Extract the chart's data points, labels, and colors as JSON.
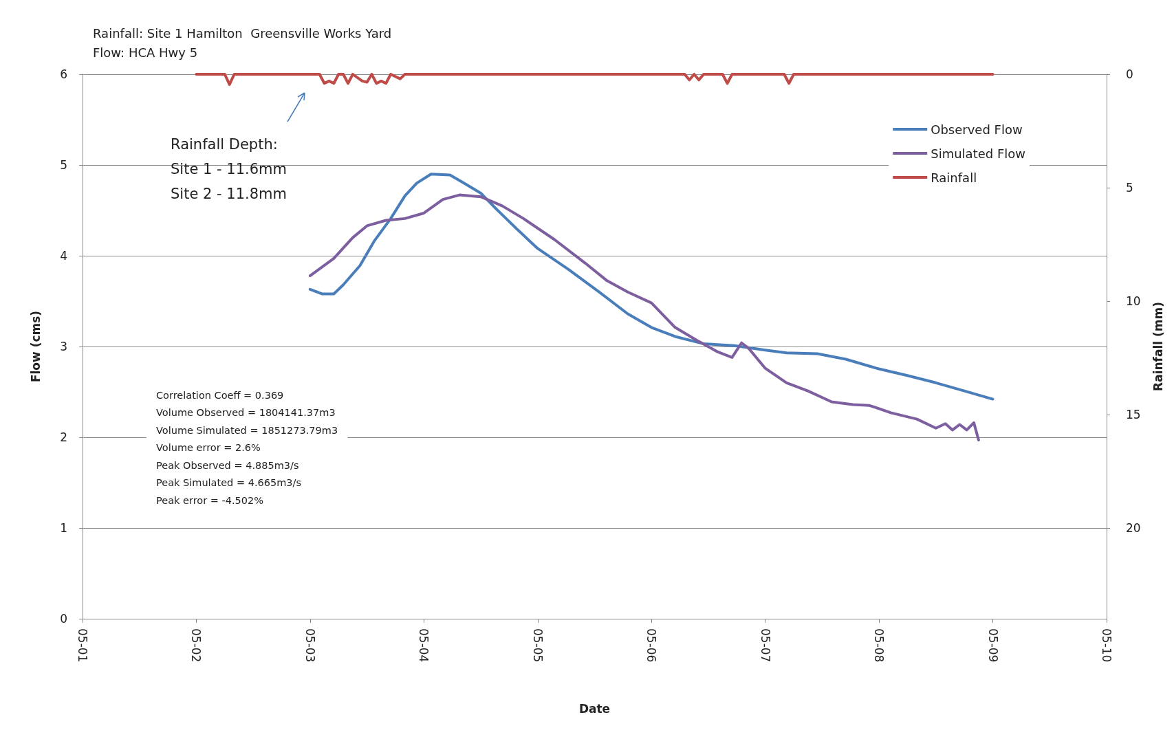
{
  "chart_data": {
    "type": "line",
    "title": "Rainfall: Site 1 Hamilton  Greensville Works Yard",
    "subtitle": "Flow: HCA Hwy 5",
    "xlabel": "Date",
    "ylabel": "Flow (cms)",
    "y2label": "Rainfall (mm)",
    "xlim": [
      "--05-01",
      "--05-10"
    ],
    "xticks": [
      {
        "value": "--05-01",
        "label": "05-01"
      },
      {
        "value": "--05-02",
        "label": "05-02"
      },
      {
        "value": "--05-03",
        "label": "05-03"
      },
      {
        "value": "--05-04",
        "label": "05-04"
      },
      {
        "value": "--05-05",
        "label": "05-05"
      },
      {
        "value": "--05-06",
        "label": "05-06"
      },
      {
        "value": "--05-07",
        "label": "05-07"
      },
      {
        "value": "--05-08",
        "label": "05-08"
      },
      {
        "value": "--05-09",
        "label": "05-09"
      },
      {
        "value": "--05-10",
        "label": "05-10"
      }
    ],
    "ylim": [
      0,
      6
    ],
    "yticks": [
      0,
      1,
      2,
      3,
      4,
      5,
      6
    ],
    "y2lim": [
      24,
      0
    ],
    "y2ticks": [
      0,
      5,
      10,
      15,
      20
    ],
    "grid": "y",
    "legend": "top right",
    "marker": "none",
    "line_style": "solid",
    "series": [
      {
        "name": "Observed Flow",
        "color": "#4a7ebb",
        "x": [
          "--05-03T00:00",
          "--05-03T02:30",
          "--05-03T05:00",
          "--05-03T07:00",
          "--05-03T10:30",
          "--05-03T13:30",
          "--05-03T17:00",
          "--05-03T20:00",
          "--05-03T22:30",
          "--05-04T01:30",
          "--05-04T05:30",
          "--05-04T08:30",
          "--05-04T12:00",
          "--05-04T15:00",
          "--05-04T19:30",
          "--05-05T00:00",
          "--05-05T06:30",
          "--05-05T13:00",
          "--05-05T19:00",
          "--05-06T00:00",
          "--05-06T05:00",
          "--05-06T11:00",
          "--05-06T17:30",
          "--05-07T00:00",
          "--05-07T04:30",
          "--05-07T11:00",
          "--05-07T17:00",
          "--05-07T23:30",
          "--05-08T06:00",
          "--05-08T12:00",
          "--05-08T18:00",
          "--05-09T00:00"
        ],
        "values": [
          3.63,
          3.58,
          3.58,
          3.68,
          3.89,
          4.16,
          4.41,
          4.66,
          4.8,
          4.9,
          4.89,
          4.8,
          4.69,
          4.53,
          4.3,
          4.08,
          3.85,
          3.6,
          3.36,
          3.21,
          3.11,
          3.03,
          3.01,
          2.96,
          2.93,
          2.92,
          2.86,
          2.76,
          2.68,
          2.6,
          2.51,
          2.42
        ]
      },
      {
        "name": "Simulated Flow",
        "color": "#7d5fa0",
        "x": [
          "--05-03T00:00",
          "--05-03T05:00",
          "--05-03T09:00",
          "--05-03T12:00",
          "--05-03T16:00",
          "--05-03T20:00",
          "--05-04T00:00",
          "--05-04T04:00",
          "--05-04T07:30",
          "--05-04T12:00",
          "--05-04T16:30",
          "--05-04T21:00",
          "--05-05T03:30",
          "--05-05T10:00",
          "--05-05T14:30",
          "--05-05T19:00",
          "--05-06T00:00",
          "--05-06T05:00",
          "--05-06T09:30",
          "--05-06T14:00",
          "--05-06T17:00",
          "--05-06T19:00",
          "--05-06T20:30",
          "--05-07T00:00",
          "--05-07T04:30",
          "--05-07T09:00",
          "--05-07T14:00",
          "--05-07T18:30",
          "--05-07T22:00",
          "--05-08T02:30",
          "--05-08T08:00",
          "--05-08T12:00",
          "--05-08T14:00",
          "--05-08T15:30",
          "--05-08T17:00",
          "--05-08T18:30",
          "--05-08T20:00",
          "--05-08T21:00"
        ],
        "values": [
          3.78,
          3.97,
          4.2,
          4.33,
          4.39,
          4.41,
          4.47,
          4.62,
          4.67,
          4.65,
          4.55,
          4.41,
          4.18,
          3.92,
          3.73,
          3.6,
          3.48,
          3.21,
          3.07,
          2.94,
          2.88,
          3.04,
          2.98,
          2.76,
          2.6,
          2.51,
          2.39,
          2.36,
          2.35,
          2.27,
          2.2,
          2.1,
          2.15,
          2.08,
          2.14,
          2.08,
          2.16,
          1.97
        ]
      },
      {
        "name": "Rainfall",
        "color": "#be4b48",
        "axis": "y2",
        "x": [
          "--05-02T00:00",
          "--05-02T06:00",
          "--05-02T07:00",
          "--05-02T08:00",
          "--05-03T02:00",
          "--05-03T03:00",
          "--05-03T04:00",
          "--05-03T05:00",
          "--05-03T06:00",
          "--05-03T07:00",
          "--05-03T08:00",
          "--05-03T09:00",
          "--05-03T11:00",
          "--05-03T12:00",
          "--05-03T13:00",
          "--05-03T14:00",
          "--05-03T15:00",
          "--05-03T16:00",
          "--05-03T17:00",
          "--05-03T19:00",
          "--05-03T20:00",
          "--05-06T07:00",
          "--05-06T08:00",
          "--05-06T09:00",
          "--05-06T10:00",
          "--05-06T11:00",
          "--05-06T15:00",
          "--05-06T16:00",
          "--05-06T17:00",
          "--05-07T04:00",
          "--05-07T05:00",
          "--05-07T06:00",
          "--05-09T00:00"
        ],
        "values": [
          0,
          0,
          0.45,
          0,
          0,
          0.4,
          0.3,
          0.4,
          0,
          0,
          0.4,
          0,
          0.3,
          0.35,
          0,
          0.4,
          0.3,
          0.4,
          0,
          0.2,
          0,
          0,
          0.25,
          0,
          0.25,
          0,
          0,
          0.4,
          0,
          0,
          0.4,
          0,
          0
        ]
      }
    ],
    "annotations": [
      "Rainfall Depth:\nSite 1 - 11.6mm\nSite 2 - 11.8mm",
      "Correlation Coeff = 0.369\nVolume Observed = 1804141.37m3\nVolume Simulated = 1851273.79m3\nVolume error = 2.6%\nPeak Observed = 4.885m3/s\nPeak Simulated = 4.665m3/s\nPeak error = -4.502%"
    ]
  }
}
